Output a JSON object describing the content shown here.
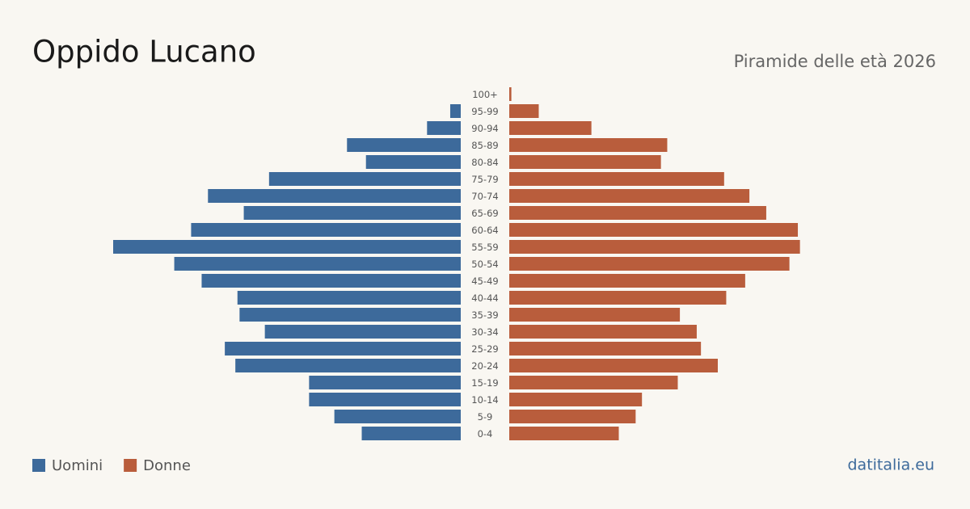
{
  "chart_data": {
    "type": "pyramid",
    "title": "Oppido Lucano",
    "subtitle": "Piramide delle età 2026",
    "categories": [
      "100+",
      "95-99",
      "90-94",
      "85-89",
      "80-84",
      "75-79",
      "70-74",
      "65-69",
      "60-64",
      "55-59",
      "50-54",
      "45-49",
      "40-44",
      "35-39",
      "30-34",
      "25-29",
      "20-24",
      "15-19",
      "10-14",
      "5-9",
      "0-4"
    ],
    "series": [
      {
        "name": "Uomini",
        "color": "#3d6a9b",
        "values": [
          0,
          5,
          16,
          54,
          45,
          91,
          120,
          103,
          128,
          165,
          136,
          123,
          106,
          105,
          93,
          112,
          107,
          72,
          72,
          60,
          47
        ]
      },
      {
        "name": "Donne",
        "color": "#b95d3c",
        "values": [
          1,
          14,
          39,
          75,
          72,
          102,
          114,
          122,
          137,
          138,
          133,
          112,
          103,
          81,
          89,
          91,
          99,
          80,
          63,
          60,
          52
        ]
      }
    ],
    "source": "datitalia.eu"
  }
}
